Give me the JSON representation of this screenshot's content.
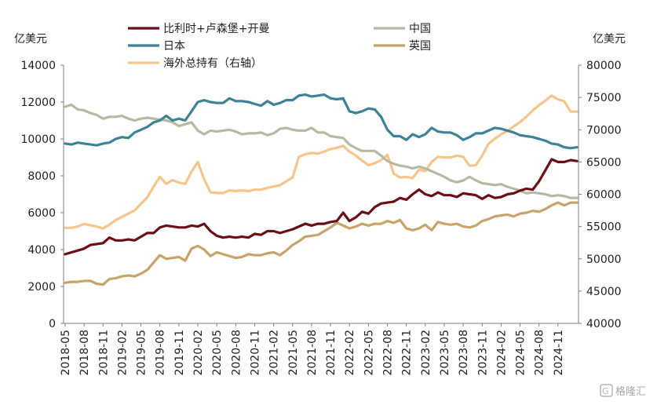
{
  "chart_data": {
    "type": "line",
    "left_unit": "亿美元",
    "right_unit": "亿美元",
    "y_left": {
      "min": 0,
      "max": 14000,
      "ticks": [
        0,
        2000,
        4000,
        6000,
        8000,
        10000,
        12000,
        14000
      ]
    },
    "y_right": {
      "min": 40000,
      "max": 80000,
      "ticks": [
        40000,
        45000,
        50000,
        55000,
        60000,
        65000,
        70000,
        75000,
        80000
      ]
    },
    "x_tick_labels": [
      "2018-05",
      "2018-08",
      "2018-11",
      "2019-02",
      "2019-05",
      "2019-08",
      "2019-11",
      "2020-02",
      "2020-05",
      "2020-08",
      "2020-11",
      "2021-02",
      "2021-05",
      "2021-08",
      "2021-11",
      "2022-02",
      "2022-05",
      "2022-08",
      "2022-11",
      "2023-02",
      "2023-05",
      "2023-08",
      "2023-11",
      "2024-02",
      "2024-05",
      "2024-08",
      "2024-11"
    ],
    "x_start": "2018-05",
    "legend": [
      {
        "key": "benelux",
        "label": "比利时+卢森堡+开曼"
      },
      {
        "key": "china",
        "label": "中国"
      },
      {
        "key": "japan",
        "label": "日本"
      },
      {
        "key": "uk",
        "label": "英国"
      },
      {
        "key": "overseas",
        "label": "海外总持有（右轴）"
      }
    ],
    "series": [
      {
        "key": "benelux",
        "name": "比利时+卢森堡+开曼",
        "color": "#6b0f17",
        "axis": "left",
        "values": [
          3750,
          3850,
          3950,
          4050,
          4250,
          4300,
          4350,
          4650,
          4500,
          4500,
          4550,
          4500,
          4700,
          4900,
          4900,
          5200,
          5300,
          5250,
          5200,
          5200,
          5300,
          5250,
          5400,
          5000,
          4750,
          4650,
          4700,
          4650,
          4700,
          4650,
          4850,
          4800,
          5000,
          5000,
          4900,
          5000,
          5100,
          5250,
          5400,
          5300,
          5400,
          5400,
          5500,
          5550,
          6000,
          5550,
          5750,
          6050,
          5950,
          6300,
          6500,
          6550,
          6600,
          6800,
          6700,
          7000,
          7250,
          7000,
          6900,
          7100,
          6950,
          6950,
          6850,
          7050,
          7000,
          6950,
          6750,
          6950,
          6800,
          6850,
          7000,
          7050,
          7200,
          7300,
          7250,
          7700,
          8300,
          8900,
          8750,
          8750,
          8850,
          8800
        ]
      },
      {
        "key": "china",
        "name": "中国",
        "color": "#b9b9a3",
        "axis": "left",
        "values": [
          11750,
          11850,
          11600,
          11550,
          11400,
          11300,
          11100,
          11200,
          11200,
          11250,
          11100,
          11000,
          11100,
          11150,
          11100,
          11050,
          11000,
          10900,
          10700,
          10800,
          10900,
          10450,
          10250,
          10450,
          10400,
          10450,
          10500,
          10400,
          10250,
          10300,
          10300,
          10350,
          10200,
          10300,
          10550,
          10600,
          10500,
          10450,
          10450,
          10600,
          10350,
          10350,
          10150,
          10100,
          10050,
          9700,
          9500,
          9350,
          9350,
          9350,
          9100,
          8800,
          8650,
          8550,
          8500,
          8400,
          8500,
          8400,
          8250,
          8100,
          7950,
          7750,
          7650,
          7750,
          7950,
          7750,
          7600,
          7550,
          7500,
          7550,
          7400,
          7300,
          7200,
          7050,
          7100,
          7050,
          7000,
          6900,
          6950,
          6900,
          6800,
          6800
        ]
      },
      {
        "key": "japan",
        "name": "日本",
        "color": "#3e8295",
        "axis": "left",
        "values": [
          9750,
          9700,
          9800,
          9750,
          9700,
          9650,
          9750,
          9800,
          10000,
          10100,
          10050,
          10350,
          10500,
          10650,
          10900,
          11000,
          11250,
          11000,
          11100,
          11000,
          11500,
          12000,
          12100,
          12000,
          11950,
          11950,
          12200,
          12050,
          12050,
          12000,
          11900,
          11800,
          12050,
          11850,
          11950,
          12100,
          12100,
          12350,
          12400,
          12300,
          12350,
          12400,
          12200,
          12150,
          12200,
          11500,
          11400,
          11500,
          11650,
          11600,
          11200,
          10500,
          10150,
          10150,
          9950,
          10250,
          10100,
          10250,
          10600,
          10400,
          10350,
          10350,
          10200,
          9950,
          10100,
          10300,
          10300,
          10450,
          10600,
          10550,
          10450,
          10350,
          10200,
          10150,
          10100,
          10000,
          9900,
          9750,
          9700,
          9550,
          9500,
          9550
        ]
      },
      {
        "key": "uk",
        "name": "英国",
        "color": "#c8a46b",
        "axis": "left",
        "values": [
          2200,
          2250,
          2250,
          2300,
          2300,
          2150,
          2100,
          2400,
          2450,
          2550,
          2600,
          2550,
          2700,
          2900,
          3300,
          3700,
          3500,
          3550,
          3600,
          3400,
          4050,
          4200,
          4000,
          3650,
          3850,
          3750,
          3650,
          3550,
          3600,
          3750,
          3700,
          3700,
          3800,
          3850,
          3700,
          3950,
          4250,
          4450,
          4700,
          4750,
          4800,
          5000,
          5200,
          5450,
          5300,
          5150,
          5250,
          5400,
          5300,
          5400,
          5400,
          5550,
          5450,
          5600,
          5150,
          5050,
          5150,
          5350,
          5050,
          5500,
          5400,
          5350,
          5400,
          5250,
          5200,
          5300,
          5550,
          5650,
          5800,
          5850,
          5900,
          5800,
          5950,
          6000,
          6100,
          6050,
          6200,
          6400,
          6550,
          6400,
          6550,
          6550
        ]
      },
      {
        "key": "overseas",
        "name": "海外总持有（右轴）",
        "color": "#f7c58c",
        "axis": "right",
        "values": [
          54800,
          54800,
          55000,
          55400,
          55200,
          55000,
          54700,
          55300,
          56000,
          56500,
          57000,
          57500,
          58500,
          59500,
          61200,
          62700,
          61600,
          62200,
          61800,
          61600,
          63500,
          65000,
          62300,
          60300,
          60200,
          60200,
          60600,
          60500,
          60600,
          60500,
          60700,
          60700,
          61000,
          61200,
          61400,
          62000,
          62600,
          65800,
          66200,
          66400,
          66300,
          66600,
          67000,
          67200,
          67500,
          66600,
          66000,
          65200,
          64500,
          64800,
          65300,
          66100,
          63200,
          62600,
          62700,
          62500,
          63800,
          63600,
          65000,
          65800,
          65700,
          65700,
          66000,
          65800,
          64400,
          64500,
          66000,
          67800,
          68600,
          69300,
          69800,
          70500,
          71200,
          72000,
          73000,
          73800,
          74500,
          75300,
          74700,
          74400,
          72800,
          72800
        ]
      }
    ]
  },
  "watermark": {
    "text": "格隆汇",
    "icon": "g-logo-icon"
  }
}
